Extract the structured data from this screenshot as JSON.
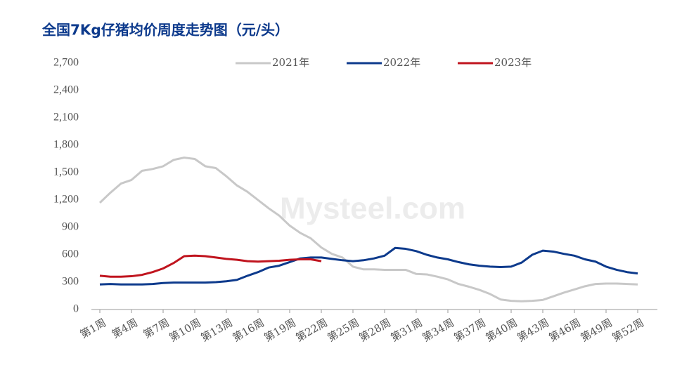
{
  "chart_data": {
    "type": "line",
    "title": "全国7Kg仔猪均价周度走势图（元/头）",
    "watermark": "Mysteel.com",
    "categories": [
      "第1周",
      null,
      null,
      "第4周",
      null,
      null,
      "第7周",
      null,
      null,
      "第10周",
      null,
      null,
      "第13周",
      null,
      null,
      "第16周",
      null,
      null,
      "第19周",
      null,
      null,
      "第22周",
      null,
      null,
      "第25周",
      null,
      null,
      "第28周",
      null,
      null,
      "第31周",
      null,
      null,
      "第34周",
      null,
      null,
      "第37周",
      null,
      null,
      "第40周",
      null,
      null,
      "第43周",
      null,
      null,
      "第46周",
      null,
      null,
      "第49周",
      null,
      null,
      "第52周"
    ],
    "series": [
      {
        "name": "2021年",
        "color": "#c8c8c8",
        "values": [
          1170,
          1280,
          1380,
          1420,
          1520,
          1540,
          1570,
          1640,
          1665,
          1650,
          1570,
          1550,
          1460,
          1360,
          1290,
          1200,
          1110,
          1030,
          920,
          840,
          780,
          680,
          610,
          570,
          470,
          440,
          440,
          435,
          435,
          435,
          390,
          385,
          360,
          330,
          280,
          250,
          215,
          170,
          110,
          95,
          90,
          95,
          105,
          145,
          185,
          220,
          255,
          280,
          285,
          285,
          280,
          275
        ]
      },
      {
        "name": "2022年",
        "color": "#0d3a8c",
        "values": [
          275,
          280,
          275,
          275,
          275,
          280,
          290,
          295,
          295,
          295,
          295,
          300,
          310,
          325,
          370,
          410,
          460,
          480,
          520,
          560,
          570,
          570,
          555,
          540,
          530,
          540,
          560,
          590,
          675,
          665,
          640,
          600,
          570,
          550,
          520,
          495,
          480,
          470,
          465,
          470,
          515,
          600,
          645,
          635,
          610,
          590,
          550,
          525,
          470,
          435,
          410,
          395
        ]
      },
      {
        "name": "2023年",
        "color": "#c0141e",
        "values": [
          370,
          360,
          360,
          365,
          380,
          410,
          450,
          510,
          585,
          590,
          585,
          570,
          555,
          545,
          530,
          525,
          530,
          535,
          545,
          550,
          550,
          530,
          null,
          null,
          null,
          null,
          null,
          null,
          null,
          null,
          null,
          null,
          null,
          null,
          null,
          null,
          null,
          null,
          null,
          null,
          null,
          null,
          null,
          null,
          null,
          null,
          null,
          null,
          null,
          null,
          null,
          null
        ]
      }
    ],
    "ylim": [
      0,
      2700
    ],
    "yticks": [
      0,
      300,
      600,
      900,
      {
        "value": 1200,
        "label": "1,200"
      },
      {
        "value": 1500,
        "label": "1,500"
      },
      {
        "value": 1800,
        "label": "1,800"
      },
      {
        "value": 2100,
        "label": "2,100"
      },
      {
        "value": 2400,
        "label": "2,400"
      },
      {
        "value": 2700,
        "label": "2,700"
      }
    ],
    "grid": false,
    "legend": "top"
  }
}
